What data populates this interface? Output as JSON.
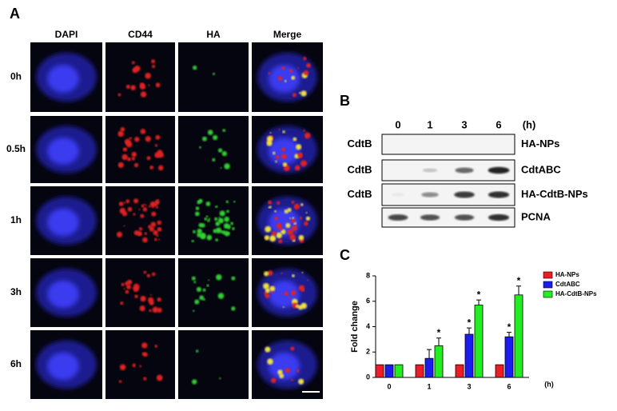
{
  "panel_a": {
    "label": "A",
    "columns": [
      "DAPI",
      "CD44",
      "HA",
      "Merge"
    ],
    "rows": [
      "0h",
      "0.5h",
      "1h",
      "3h",
      "6h"
    ]
  },
  "panel_b": {
    "label": "B",
    "time_points": [
      "0",
      "1",
      "3",
      "6"
    ],
    "time_unit": "(h)",
    "blots": [
      {
        "left": "CdtB",
        "right": "HA-NPs"
      },
      {
        "left": "CdtB",
        "right": "CdtABC"
      },
      {
        "left": "CdtB",
        "right": "HA-CdtB-NPs"
      },
      {
        "right": "PCNA"
      }
    ]
  },
  "chart_data": {
    "type": "bar",
    "label": "C",
    "y_label": "Fold change",
    "x_unit": "(h)",
    "categories": [
      "0",
      "1",
      "3",
      "6"
    ],
    "series": [
      {
        "name": "HA-NPs",
        "color": "#ee1c24",
        "values": [
          1,
          1,
          1,
          1
        ],
        "errors": [
          0,
          0,
          0,
          0
        ],
        "annotations": [
          null,
          null,
          null,
          null
        ]
      },
      {
        "name": "CdtABC",
        "color": "#1c1cee",
        "values": [
          1,
          1.5,
          3.4,
          3.2
        ],
        "errors": [
          0,
          0.7,
          0.5,
          0.35
        ],
        "annotations": [
          null,
          null,
          "*",
          "*"
        ]
      },
      {
        "name": "HA-CdtB-NPs",
        "color": "#22ee22",
        "values": [
          1,
          2.5,
          5.7,
          6.5
        ],
        "errors": [
          0,
          0.6,
          0.4,
          0.7
        ],
        "annotations": [
          null,
          "*",
          "*",
          "*"
        ]
      }
    ],
    "ylim": [
      0,
      8
    ],
    "yticks": [
      0,
      2,
      4,
      6,
      8
    ],
    "legend": "top-right"
  }
}
